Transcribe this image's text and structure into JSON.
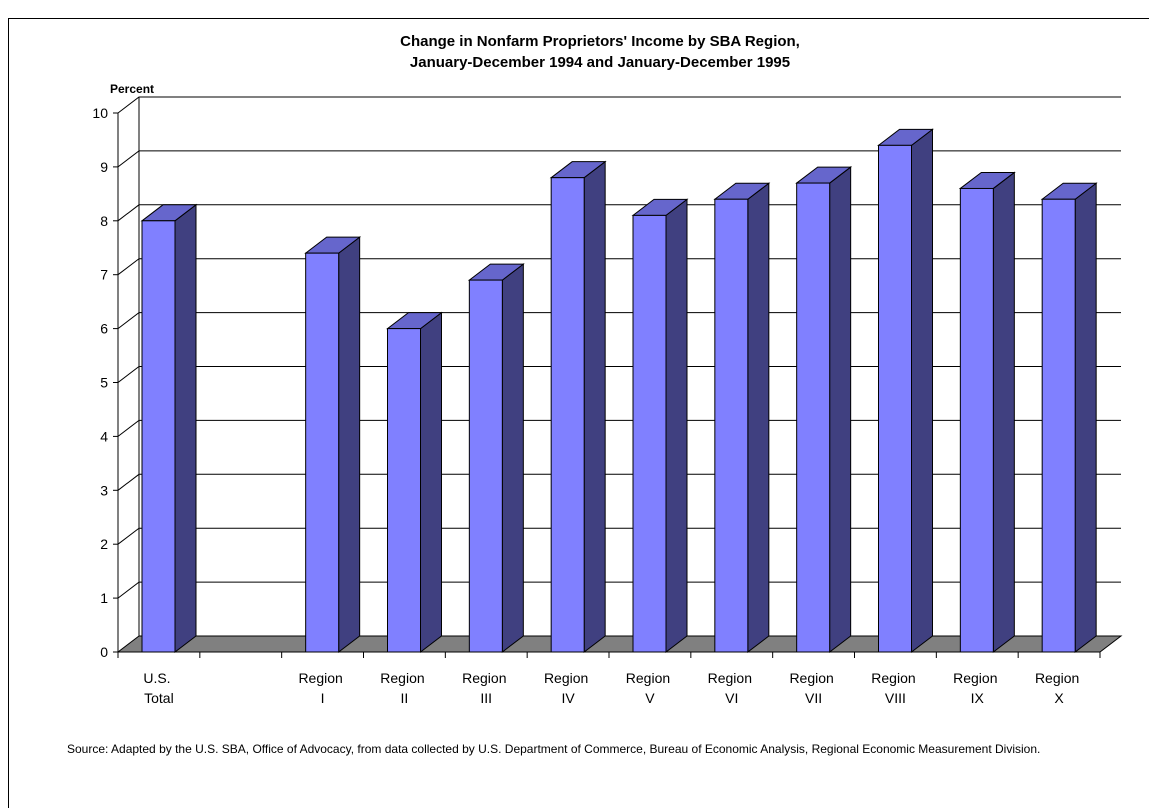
{
  "chart_data": {
    "type": "bar3d",
    "title": "Change in Nonfarm Proprietors' Income by SBA Region,",
    "subtitle": "January-December 1994 and January-December 1995",
    "y_label": "Percent",
    "categories": [
      "U.S. Total",
      null,
      "Region I",
      "Region II",
      "Region III",
      "Region IV",
      "Region V",
      "Region VI",
      "Region VII",
      "Region VIII",
      "Region IX",
      "Region X"
    ],
    "values": [
      8.0,
      null,
      7.4,
      6.0,
      6.9,
      8.8,
      8.1,
      8.4,
      8.7,
      9.4,
      8.6,
      8.4
    ],
    "color": "#8080ff",
    "ylim": [
      0,
      10
    ],
    "yticks": [
      0,
      1,
      2,
      3,
      4,
      5,
      6,
      7,
      8,
      9,
      10
    ],
    "grid": true,
    "source": "Source:  Adapted by the U.S. SBA, Office of Advocacy, from data collected by U.S. Department of Commerce, Bureau of Economic Analysis, Regional Economic Measurement Division."
  }
}
